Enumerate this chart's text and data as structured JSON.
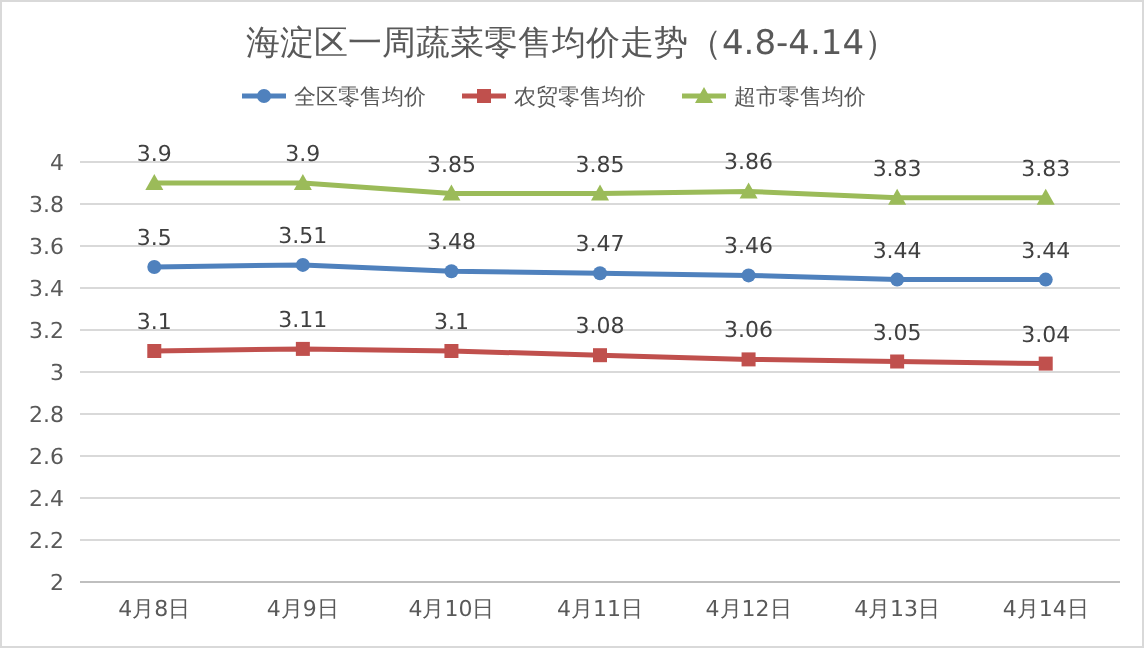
{
  "chart_data": {
    "type": "line",
    "title": "海淀区一周蔬菜零售均价走势（4.8-4.14）",
    "categories": [
      "4月8日",
      "4月9日",
      "4月10日",
      "4月11日",
      "4月12日",
      "4月13日",
      "4月14日"
    ],
    "series": [
      {
        "name": "全区零售均价",
        "color": "#4f81bd",
        "marker": "circle",
        "values": [
          3.5,
          3.51,
          3.48,
          3.47,
          3.46,
          3.44,
          3.44
        ]
      },
      {
        "name": "农贸零售均价",
        "color": "#c0504d",
        "marker": "square",
        "values": [
          3.1,
          3.11,
          3.1,
          3.08,
          3.06,
          3.05,
          3.04
        ]
      },
      {
        "name": "超市零售均价",
        "color": "#9bbb59",
        "marker": "triangle",
        "values": [
          3.9,
          3.9,
          3.85,
          3.85,
          3.86,
          3.83,
          3.83
        ]
      }
    ],
    "ylim": [
      2,
      4
    ],
    "yticks": [
      2,
      2.2,
      2.4,
      2.6,
      2.8,
      3,
      3.2,
      3.4,
      3.6,
      3.8,
      4
    ],
    "grid": "y",
    "legend": "top",
    "data_labels": true,
    "line_style": "solid"
  }
}
